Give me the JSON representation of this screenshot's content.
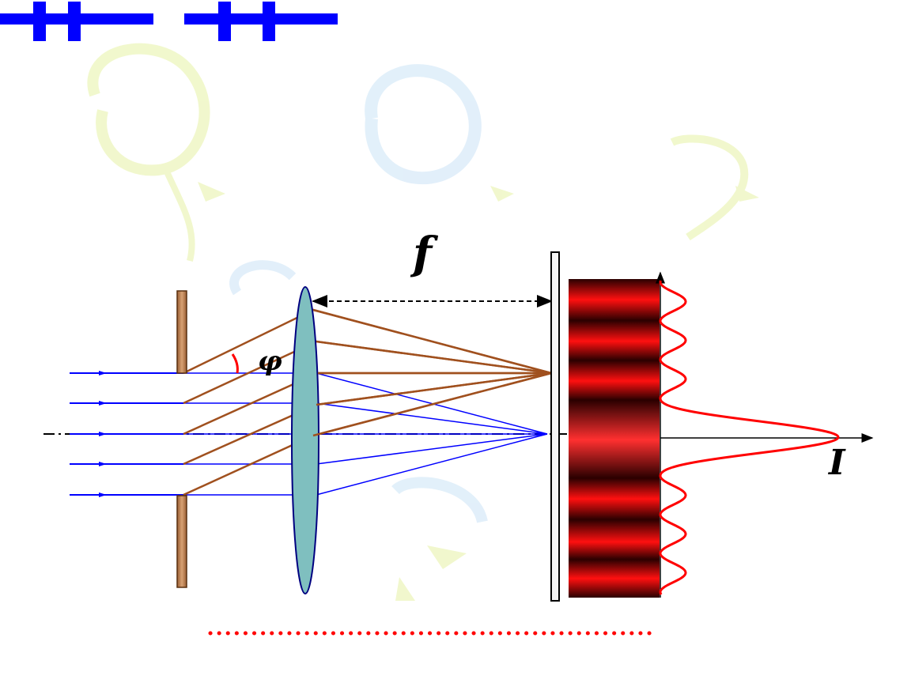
{
  "labels": {
    "focal_length": "f",
    "angle": "φ",
    "intensity": "I"
  },
  "colors": {
    "header_glyph": "#0000ff",
    "slit": "#b8794a",
    "lens": "#7fbfbf",
    "incident_rays": "#0000ff",
    "diffracted_rays": "#a0501e",
    "intensity_curve": "#ff0000",
    "fringe_bright": "#ff2020",
    "fringe_dark": "#2a0000",
    "angle_arc": "#ff0000",
    "dotted_line": "#ff0000",
    "background_decoration_green": "#f0f7c8",
    "background_decoration_blue": "#dfeefa"
  },
  "icons": {
    "header_left": "double-cross-glyph",
    "header_right": "double-cross-glyph"
  },
  "intensity_profile": {
    "peak_count_each_side": 5,
    "central_peak_relative": 1.0
  }
}
